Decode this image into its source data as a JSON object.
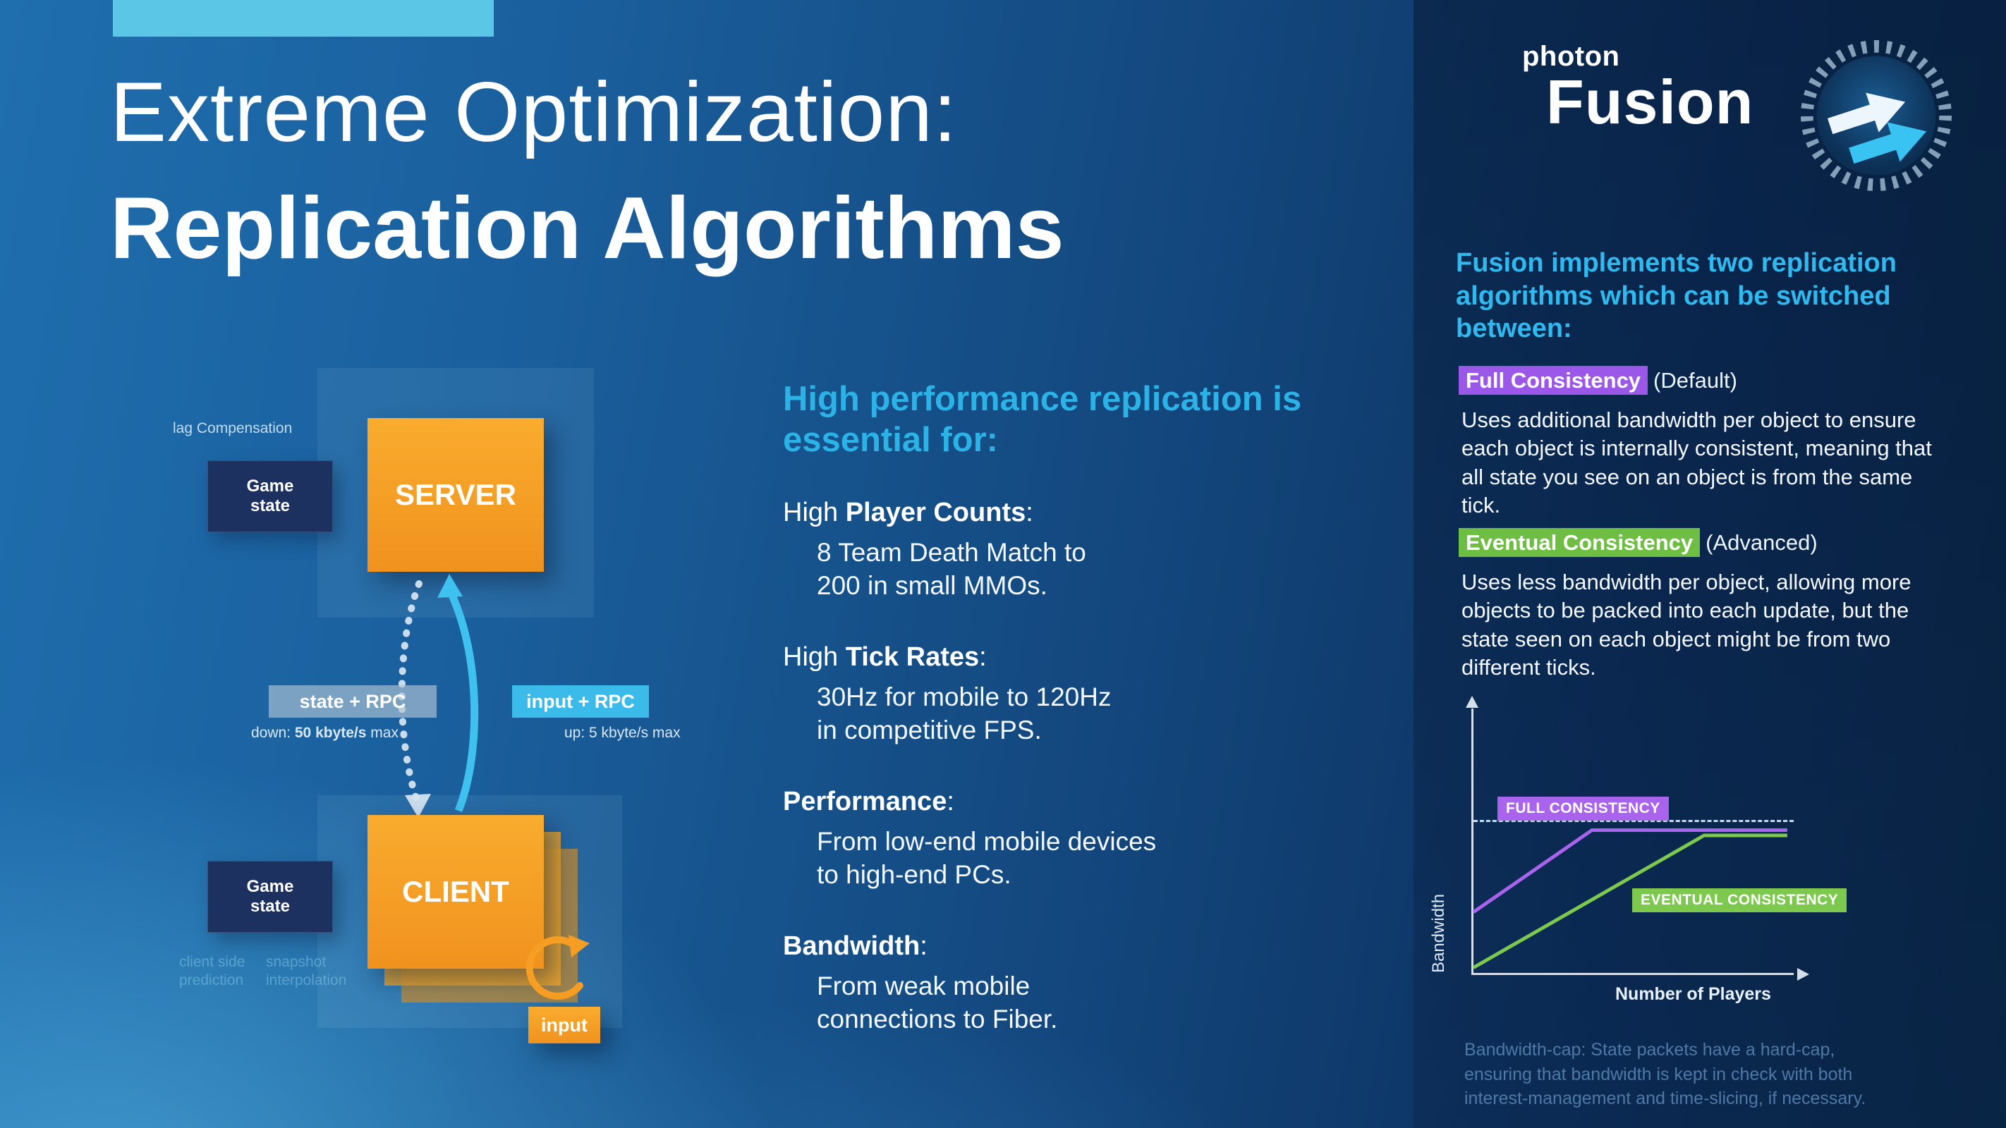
{
  "colors": {
    "accent_cyan": "#5BC6E6",
    "heading_cyan": "#2BB3E8",
    "intro_cyan": "#2FB9EE",
    "orange": "#F5A125",
    "navy_box": "#1D3161",
    "full_purple": "#9A57E8",
    "eventual_green": "#6FBE44"
  },
  "title": {
    "line1": "Extreme Optimization:",
    "line2": "Replication Algorithms"
  },
  "diagram": {
    "lag_compensation": "lag Compensation",
    "game_state": "Game\nstate",
    "server_label": "SERVER",
    "client_label": "CLIENT",
    "state_rpc": "state + RPC",
    "input_rpc": "input + RPC",
    "down_prefix": "down: ",
    "down_bold": "50 kbyte/s",
    "down_suffix": " max",
    "up_label": "up: 5 kbyte/s max",
    "client_side_prediction": "client side\nprediction",
    "snapshot_interpolation": "snapshot\ninterpolation",
    "input_label": "input"
  },
  "middle": {
    "heading": "High performance replication is essential for:",
    "items": [
      {
        "prefix": "High ",
        "bold": "Player Counts",
        "suffix": ":",
        "body": "8 Team Death Match to\n200 in small MMOs."
      },
      {
        "prefix": "High ",
        "bold": "Tick Rates",
        "suffix": ":",
        "body": "30Hz for mobile to 120Hz\nin competitive FPS."
      },
      {
        "prefix": "",
        "bold": "Performance",
        "suffix": ":",
        "body": "From low-end mobile devices\nto high-end PCs."
      },
      {
        "prefix": "",
        "bold": "Bandwidth",
        "suffix": ":",
        "body": "From weak mobile\nconnections to Fiber."
      }
    ]
  },
  "logo": {
    "photon": "photon",
    "fusion": "Fusion"
  },
  "right": {
    "intro": "Fusion implements two replication algorithms which can be switched between:",
    "full_badge": "Full Consistency",
    "full_qualifier": "(Default)",
    "full_body": "Uses additional bandwidth per object to ensure each object is internally consistent, meaning that all state you see on an object is from the same tick.",
    "eventual_badge": "Eventual Consistency",
    "eventual_qualifier": "(Advanced)",
    "eventual_body": "Uses less bandwidth per object, allowing more objects to be packed into each update, but the state seen on each object might be from two different ticks.",
    "footnote": "Bandwidth-cap: State packets have a hard-cap, ensuring that bandwidth is kept in check with both interest-management and time-slicing, if necessary."
  },
  "chart_data": {
    "type": "line",
    "title": "",
    "xlabel": "Number of Players",
    "ylabel": "Bandwidth",
    "x_axis": "unlabeled qualitative axis",
    "y_axis": "unlabeled qualitative axis",
    "grid": false,
    "legend_position": "inline badges on lines",
    "cap_y_pct": 57,
    "cap_label": "bandwidth hard-cap (dashed line)",
    "series": [
      {
        "name": "FULL CONSISTENCY",
        "color": "#A963EC",
        "points_pct": [
          [
            0,
            23
          ],
          [
            37,
            54
          ],
          [
            98,
            54
          ]
        ]
      },
      {
        "name": "EVENTUAL CONSISTENCY",
        "color": "#7DC94E",
        "points_pct": [
          [
            0,
            2
          ],
          [
            72,
            52
          ],
          [
            98,
            52
          ]
        ]
      }
    ]
  }
}
